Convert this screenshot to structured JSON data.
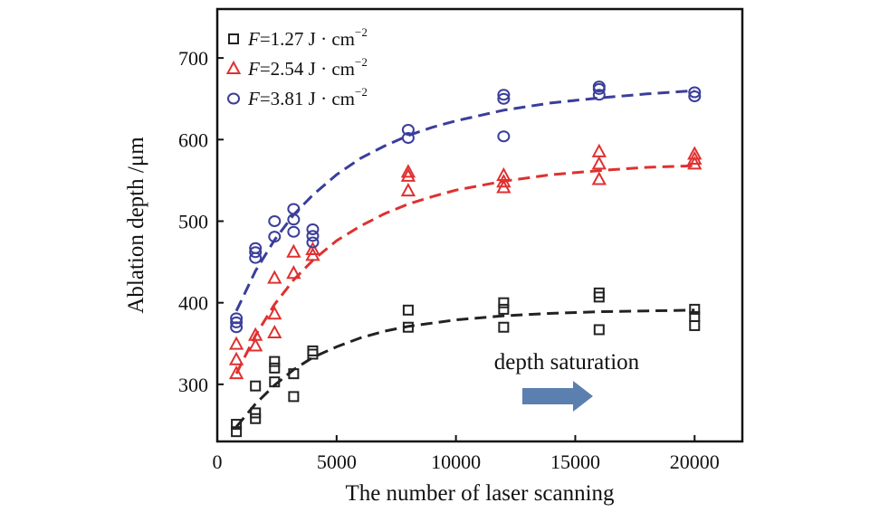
{
  "chart_data": {
    "type": "scatter",
    "xlabel": "The number of laser scanning",
    "ylabel": "Ablation depth /μm",
    "xlim": [
      0,
      22000
    ],
    "ylim": [
      230,
      760
    ],
    "xticks": [
      0,
      5000,
      10000,
      15000,
      20000
    ],
    "yticks": [
      300,
      400,
      500,
      600,
      700
    ],
    "legend_position": "top-left",
    "annotation": {
      "text": "depth saturation",
      "arrow_color": "#5b7fae"
    },
    "series": [
      {
        "name": "F=1.27 J · cm⁻²",
        "legend_var": "F",
        "legend_rest": "=1.27 J · cm",
        "legend_exp": "−2",
        "color": "#222222",
        "marker": "square",
        "points": [
          [
            800,
            242
          ],
          [
            800,
            251
          ],
          [
            1600,
            258
          ],
          [
            1600,
            265
          ],
          [
            1600,
            298
          ],
          [
            2400,
            303
          ],
          [
            2400,
            320
          ],
          [
            2400,
            328
          ],
          [
            3200,
            285
          ],
          [
            3200,
            313
          ],
          [
            4000,
            337
          ],
          [
            4000,
            341
          ],
          [
            8000,
            370
          ],
          [
            8000,
            391
          ],
          [
            12000,
            370
          ],
          [
            12000,
            392
          ],
          [
            12000,
            400
          ],
          [
            16000,
            367
          ],
          [
            16000,
            407
          ],
          [
            16000,
            412
          ],
          [
            20000,
            372
          ],
          [
            20000,
            383
          ],
          [
            20000,
            392
          ]
        ],
        "fit": [
          [
            800,
            248
          ],
          [
            1600,
            276
          ],
          [
            2400,
            299
          ],
          [
            3200,
            318
          ],
          [
            4000,
            333
          ],
          [
            5000,
            346
          ],
          [
            6000,
            357
          ],
          [
            7000,
            365
          ],
          [
            8000,
            371
          ],
          [
            9000,
            375
          ],
          [
            10000,
            379
          ],
          [
            12000,
            384
          ],
          [
            14000,
            387
          ],
          [
            16000,
            389
          ],
          [
            18000,
            390
          ],
          [
            20000,
            391
          ]
        ]
      },
      {
        "name": "F=2.54 J · cm⁻²",
        "legend_var": "F",
        "legend_rest": "=2.54 J · cm",
        "legend_exp": "−2",
        "color": "#e03030",
        "marker": "triangle",
        "points": [
          [
            800,
            313
          ],
          [
            800,
            330
          ],
          [
            800,
            349
          ],
          [
            1600,
            347
          ],
          [
            1600,
            360
          ],
          [
            2400,
            363
          ],
          [
            2400,
            386
          ],
          [
            2400,
            430
          ],
          [
            3200,
            436
          ],
          [
            3200,
            462
          ],
          [
            4000,
            458
          ],
          [
            4000,
            465
          ],
          [
            8000,
            537
          ],
          [
            8000,
            555
          ],
          [
            8000,
            560
          ],
          [
            12000,
            541
          ],
          [
            12000,
            548
          ],
          [
            12000,
            556
          ],
          [
            16000,
            551
          ],
          [
            16000,
            570
          ],
          [
            16000,
            585
          ],
          [
            20000,
            570
          ],
          [
            20000,
            576
          ],
          [
            20000,
            582
          ]
        ],
        "fit": [
          [
            800,
            313
          ],
          [
            1600,
            360
          ],
          [
            2400,
            398
          ],
          [
            3200,
            428
          ],
          [
            4000,
            452
          ],
          [
            5000,
            476
          ],
          [
            6000,
            494
          ],
          [
            7000,
            509
          ],
          [
            8000,
            521
          ],
          [
            9000,
            530
          ],
          [
            10000,
            538
          ],
          [
            12000,
            549
          ],
          [
            14000,
            557
          ],
          [
            16000,
            562
          ],
          [
            18000,
            566
          ],
          [
            20000,
            568
          ]
        ]
      },
      {
        "name": "F=3.81 J · cm⁻²",
        "legend_var": "F",
        "legend_rest": "=3.81 J · cm",
        "legend_exp": "−2",
        "color": "#3a3e9a",
        "marker": "circle",
        "points": [
          [
            800,
            370
          ],
          [
            800,
            376
          ],
          [
            800,
            381
          ],
          [
            1600,
            455
          ],
          [
            1600,
            462
          ],
          [
            1600,
            467
          ],
          [
            2400,
            481
          ],
          [
            2400,
            500
          ],
          [
            3200,
            487
          ],
          [
            3200,
            502
          ],
          [
            3200,
            515
          ],
          [
            4000,
            474
          ],
          [
            4000,
            482
          ],
          [
            4000,
            490
          ],
          [
            8000,
            602
          ],
          [
            8000,
            612
          ],
          [
            12000,
            604
          ],
          [
            12000,
            650
          ],
          [
            12000,
            655
          ],
          [
            16000,
            655
          ],
          [
            16000,
            662
          ],
          [
            16000,
            665
          ],
          [
            20000,
            653
          ],
          [
            20000,
            658
          ]
        ],
        "fit": [
          [
            800,
            390
          ],
          [
            1600,
            439
          ],
          [
            2400,
            477
          ],
          [
            3200,
            508
          ],
          [
            4000,
            532
          ],
          [
            5000,
            557
          ],
          [
            6000,
            577
          ],
          [
            7000,
            592
          ],
          [
            8000,
            605
          ],
          [
            9000,
            615
          ],
          [
            10000,
            623
          ],
          [
            12000,
            636
          ],
          [
            14000,
            645
          ],
          [
            16000,
            651
          ],
          [
            18000,
            656
          ],
          [
            20000,
            660
          ]
        ]
      }
    ]
  }
}
